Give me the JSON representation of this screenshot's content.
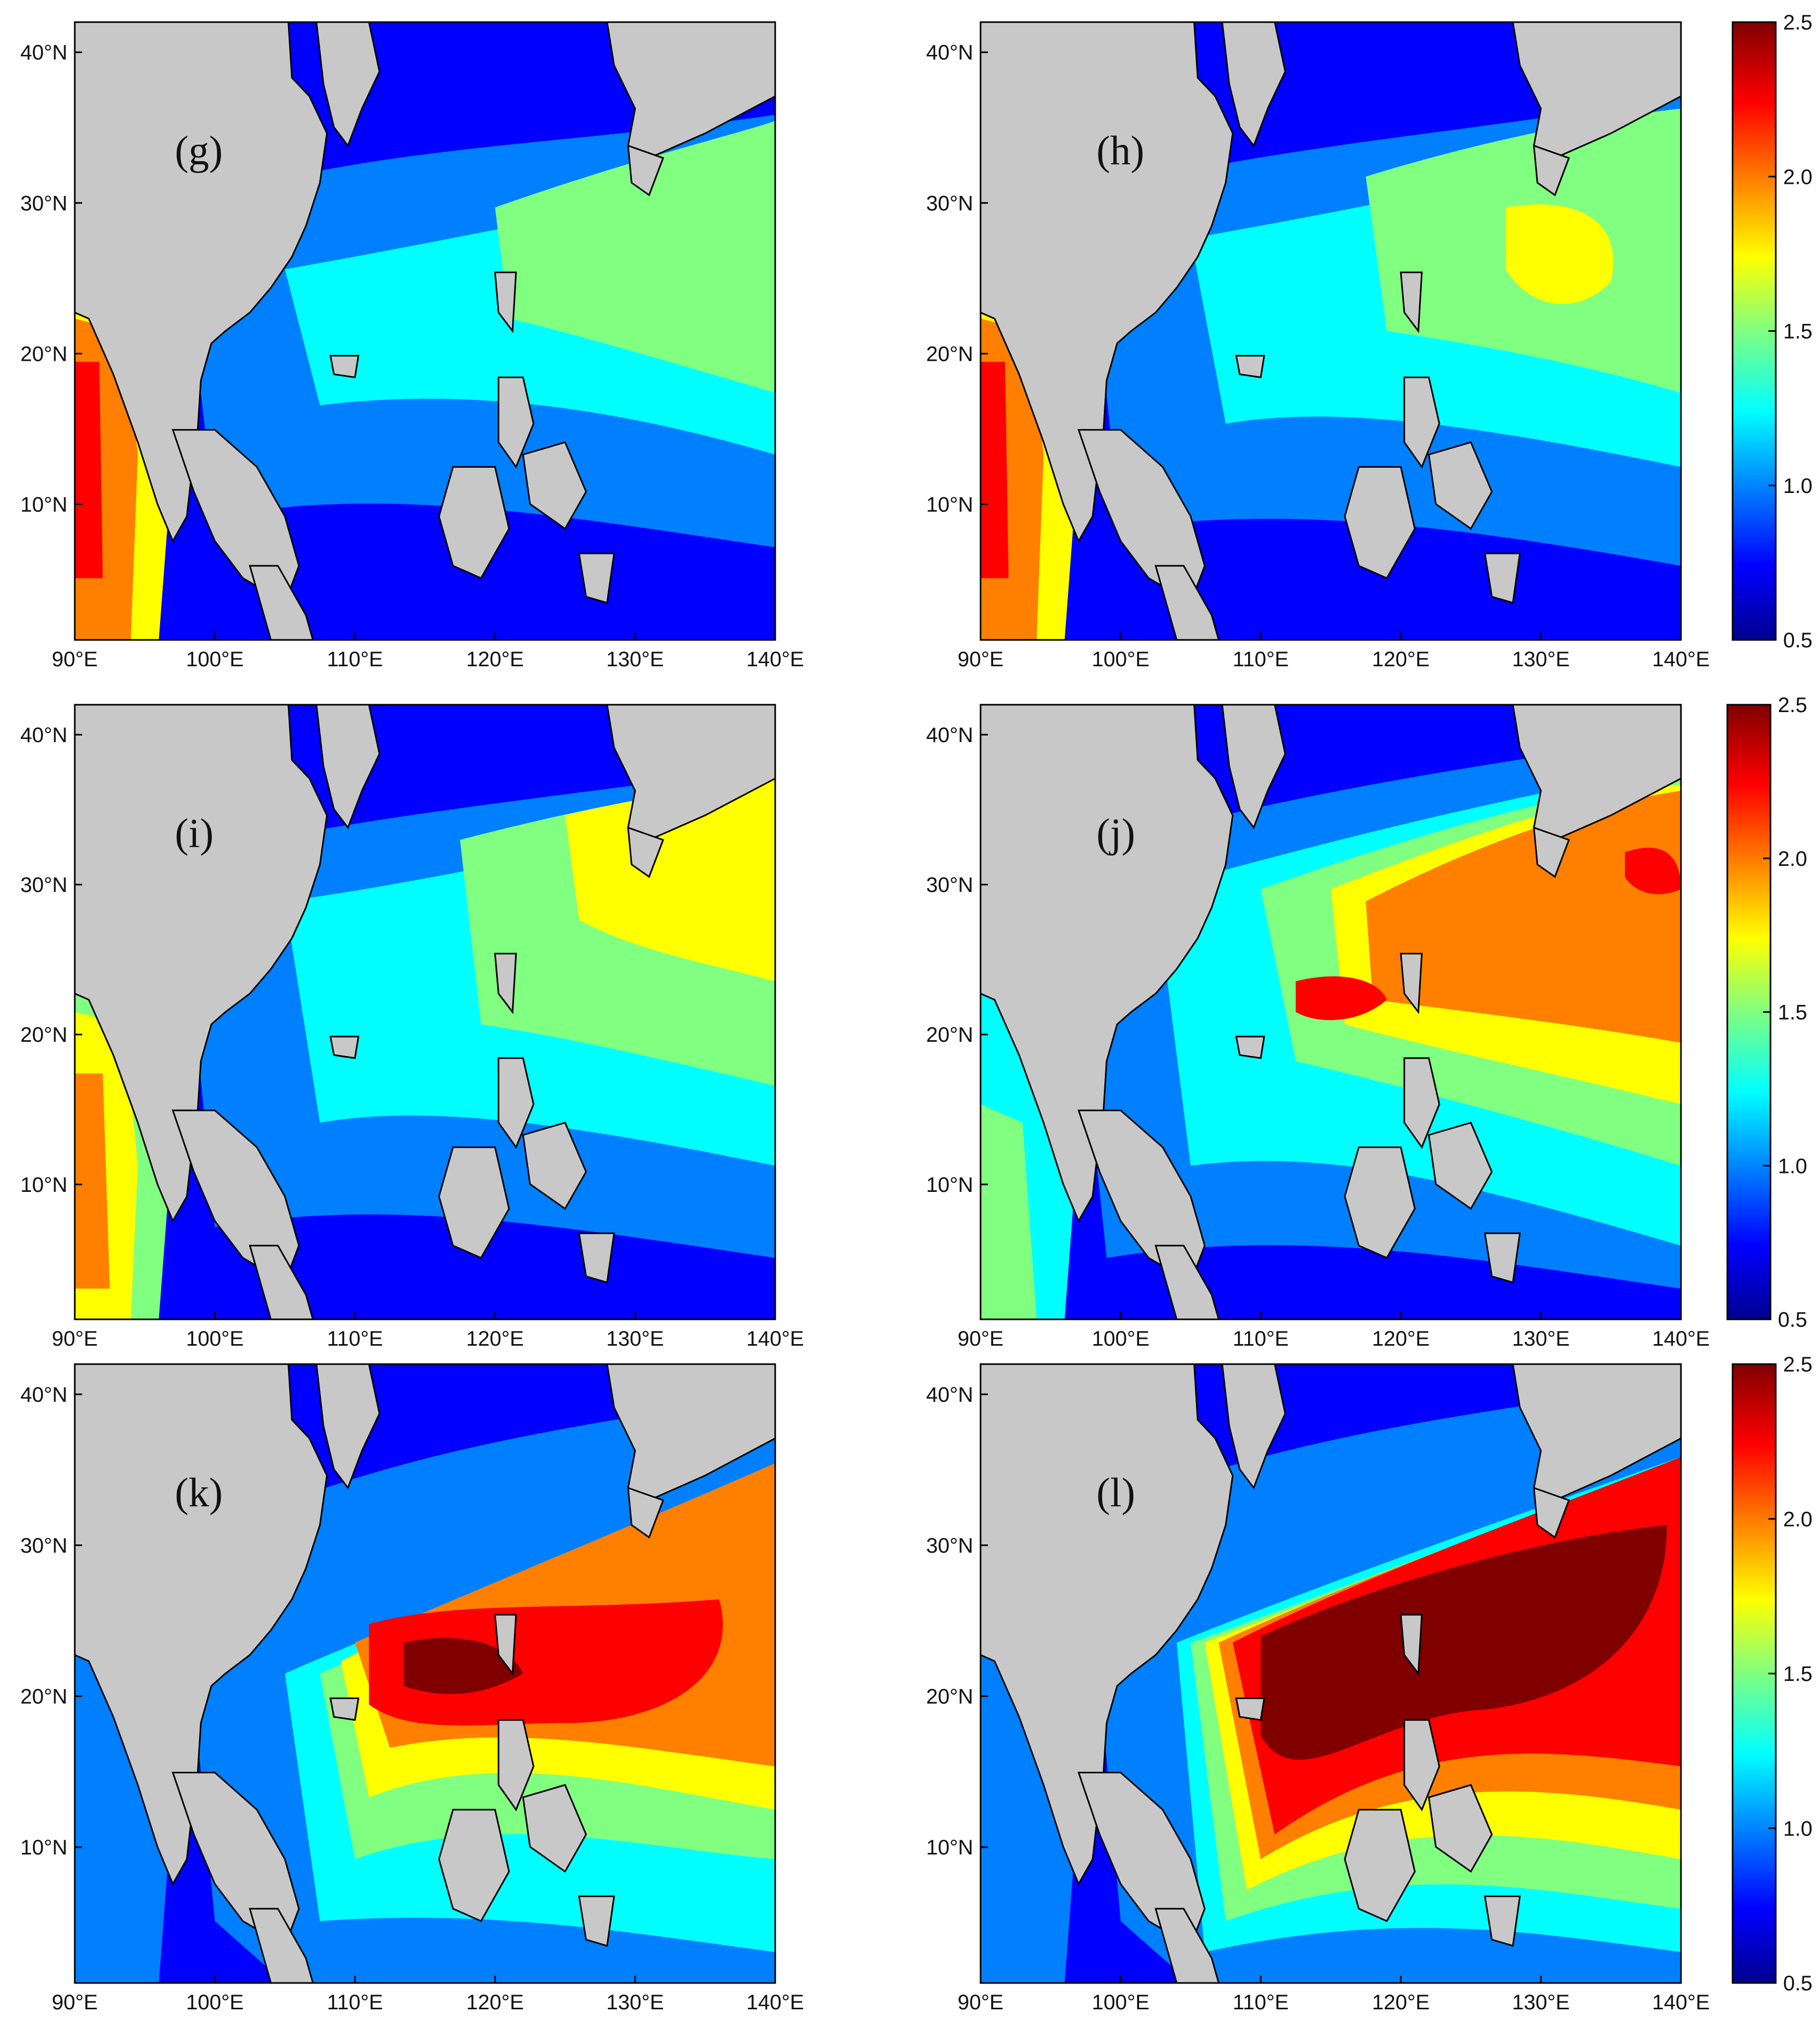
{
  "figure": {
    "x_ticks": [
      "90°E",
      "100°E",
      "110°E",
      "120°E",
      "130°E",
      "140°E"
    ],
    "y_ticks": [
      "10°N",
      "20°N",
      "30°N",
      "40°N"
    ],
    "colorbar_ticks": [
      "0.5",
      "1.0",
      "1.5",
      "2.0",
      "2.5"
    ],
    "colorbar_ticks_top_row": [
      "0.5",
      "1.0",
      "1.5",
      "2.0",
      "2.5"
    ],
    "colormap": [
      "#00008f",
      "#0000ff",
      "#0080ff",
      "#00ffff",
      "#80ff80",
      "#ffff00",
      "#ff8000",
      "#ff0000",
      "#800000"
    ],
    "land_color": "#c8c8c8",
    "panels": [
      {
        "label": "(g)",
        "pattern": "weak"
      },
      {
        "label": "(h)",
        "pattern": "moderate"
      },
      {
        "label": "(i)",
        "pattern": "moderate-plus"
      },
      {
        "label": "(j)",
        "pattern": "strong"
      },
      {
        "label": "(k)",
        "pattern": "very-strong"
      },
      {
        "label": "(l)",
        "pattern": "extreme"
      }
    ]
  }
}
